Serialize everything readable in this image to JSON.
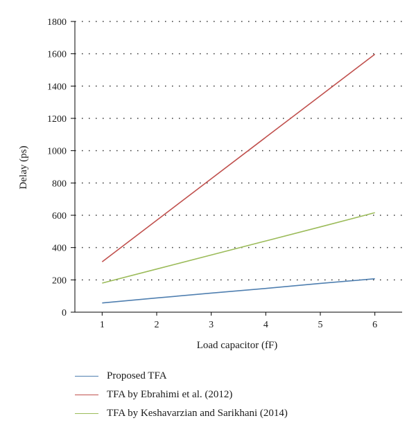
{
  "chart_data": {
    "type": "line",
    "xlabel": "Load capacitor (fF)",
    "ylabel": "Delay (ps)",
    "x": [
      1,
      2,
      3,
      4,
      5,
      6
    ],
    "xlim": [
      0.5,
      6.5
    ],
    "ylim": [
      0,
      1800
    ],
    "x_ticks": [
      "1",
      "2",
      "3",
      "4",
      "5",
      "6"
    ],
    "y_ticks": [
      "0",
      "200",
      "400",
      "600",
      "800",
      "1000",
      "1200",
      "1400",
      "1600",
      "1800"
    ],
    "grid": "horizontal dotted",
    "legend_position": "bottom",
    "series": [
      {
        "name": "Proposed TFA",
        "color": "#4f7fb0",
        "values": [
          57,
          88,
          118,
          147,
          178,
          207
        ]
      },
      {
        "name": "TFA by Ebrahimi et al. (2012)",
        "color": "#c0504d",
        "values": [
          312,
          569,
          826,
          1083,
          1340,
          1597
        ]
      },
      {
        "name": "TFA by Keshavarzian and Sarikhani (2014)",
        "color": "#9bbb59",
        "values": [
          180,
          267,
          354,
          441,
          528,
          616
        ]
      }
    ]
  }
}
